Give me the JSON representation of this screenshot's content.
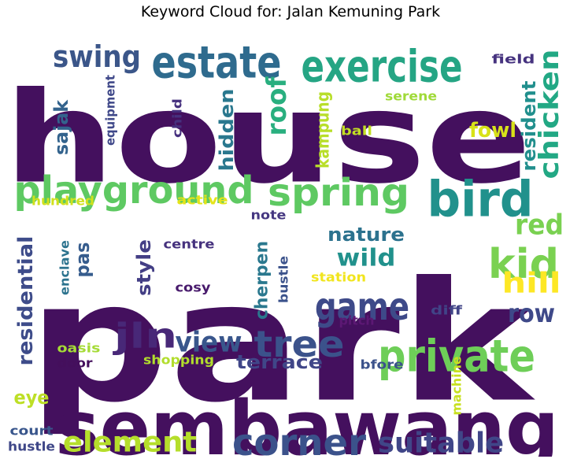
{
  "chart_data": {
    "type": "wordcloud",
    "title": "Keyword Cloud for: Jalan Kemuning Park",
    "words": [
      {
        "text": "house",
        "weight": 100,
        "color": "#44105e"
      },
      {
        "text": "park",
        "weight": 98,
        "color": "#44105e"
      },
      {
        "text": "sembawang",
        "weight": 80,
        "color": "#44105e"
      },
      {
        "text": "estate",
        "weight": 45,
        "color": "#2f6b8e"
      },
      {
        "text": "exercise",
        "weight": 45,
        "color": "#25a584"
      },
      {
        "text": "swing",
        "weight": 35,
        "color": "#3b5689"
      },
      {
        "text": "playground",
        "weight": 45,
        "color": "#5ec962"
      },
      {
        "text": "spring",
        "weight": 45,
        "color": "#5ec962"
      },
      {
        "text": "bird",
        "weight": 48,
        "color": "#21918c"
      },
      {
        "text": "private",
        "weight": 48,
        "color": "#6ece58"
      },
      {
        "text": "game",
        "weight": 42,
        "color": "#3e4a89"
      },
      {
        "text": "kid",
        "weight": 42,
        "color": "#7ad151"
      },
      {
        "text": "jln",
        "weight": 40,
        "color": "#482878"
      },
      {
        "text": "tree",
        "weight": 40,
        "color": "#3b528b"
      },
      {
        "text": "view",
        "weight": 33,
        "color": "#39568c"
      },
      {
        "text": "corner",
        "weight": 40,
        "color": "#3b528b"
      },
      {
        "text": "suitable",
        "weight": 30,
        "color": "#404688"
      },
      {
        "text": "element",
        "weight": 30,
        "color": "#b5de2b"
      },
      {
        "text": "chicken",
        "weight": 30,
        "color": "#22a884"
      },
      {
        "text": "roof",
        "weight": 28,
        "color": "#29af7f"
      },
      {
        "text": "hidden",
        "weight": 22,
        "color": "#2a788e"
      },
      {
        "text": "kampung",
        "weight": 20,
        "color": "#b8de29"
      },
      {
        "text": "resident",
        "weight": 22,
        "color": "#218f8d"
      },
      {
        "text": "red",
        "weight": 32,
        "color": "#7ad151"
      },
      {
        "text": "hill",
        "weight": 32,
        "color": "#fde725"
      },
      {
        "text": "row",
        "weight": 30,
        "color": "#3e4989"
      },
      {
        "text": "wild",
        "weight": 28,
        "color": "#21918c"
      },
      {
        "text": "nature",
        "weight": 22,
        "color": "#2c728e"
      },
      {
        "text": "fowl",
        "weight": 22,
        "color": "#d8e219"
      },
      {
        "text": "sajak",
        "weight": 20,
        "color": "#33638d"
      },
      {
        "text": "residential",
        "weight": 24,
        "color": "#3e4c8a"
      },
      {
        "text": "pas",
        "weight": 24,
        "color": "#365c8d"
      },
      {
        "text": "style",
        "weight": 22,
        "color": "#433e85"
      },
      {
        "text": "cherpen",
        "weight": 22,
        "color": "#2a788e"
      },
      {
        "text": "terrace",
        "weight": 22,
        "color": "#404688"
      },
      {
        "text": "eye",
        "weight": 22,
        "color": "#bddf26"
      },
      {
        "text": "field",
        "weight": 14,
        "color": "#46337f"
      },
      {
        "text": "serene",
        "weight": 14,
        "color": "#a0da39"
      },
      {
        "text": "equipment",
        "weight": 14,
        "color": "#3f4889"
      },
      {
        "text": "child",
        "weight": 14,
        "color": "#46307e"
      },
      {
        "text": "ball",
        "weight": 14,
        "color": "#c2df23"
      },
      {
        "text": "hundred",
        "weight": 14,
        "color": "#d0e11c"
      },
      {
        "text": "active",
        "weight": 14,
        "color": "#e5e419"
      },
      {
        "text": "note",
        "weight": 14,
        "color": "#453781"
      },
      {
        "text": "centre",
        "weight": 14,
        "color": "#46327e"
      },
      {
        "text": "enclave",
        "weight": 14,
        "color": "#2c738e"
      },
      {
        "text": "bustle",
        "weight": 14,
        "color": "#3b528b"
      },
      {
        "text": "station",
        "weight": 14,
        "color": "#f1e51d"
      },
      {
        "text": "cosy",
        "weight": 14,
        "color": "#481a6c"
      },
      {
        "text": "diff",
        "weight": 14,
        "color": "#414487"
      },
      {
        "text": "pitch",
        "weight": 14,
        "color": "#5c1874"
      },
      {
        "text": "oasis",
        "weight": 14,
        "color": "#a5db36"
      },
      {
        "text": "door",
        "weight": 14,
        "color": "#440f5c"
      },
      {
        "text": "shopping",
        "weight": 14,
        "color": "#b2dd2d"
      },
      {
        "text": "bfore",
        "weight": 14,
        "color": "#3b528b"
      },
      {
        "text": "machine",
        "weight": 14,
        "color": "#c8e020"
      },
      {
        "text": "court",
        "weight": 14,
        "color": "#39568c"
      },
      {
        "text": "hustle",
        "weight": 14,
        "color": "#3f4788"
      }
    ]
  }
}
